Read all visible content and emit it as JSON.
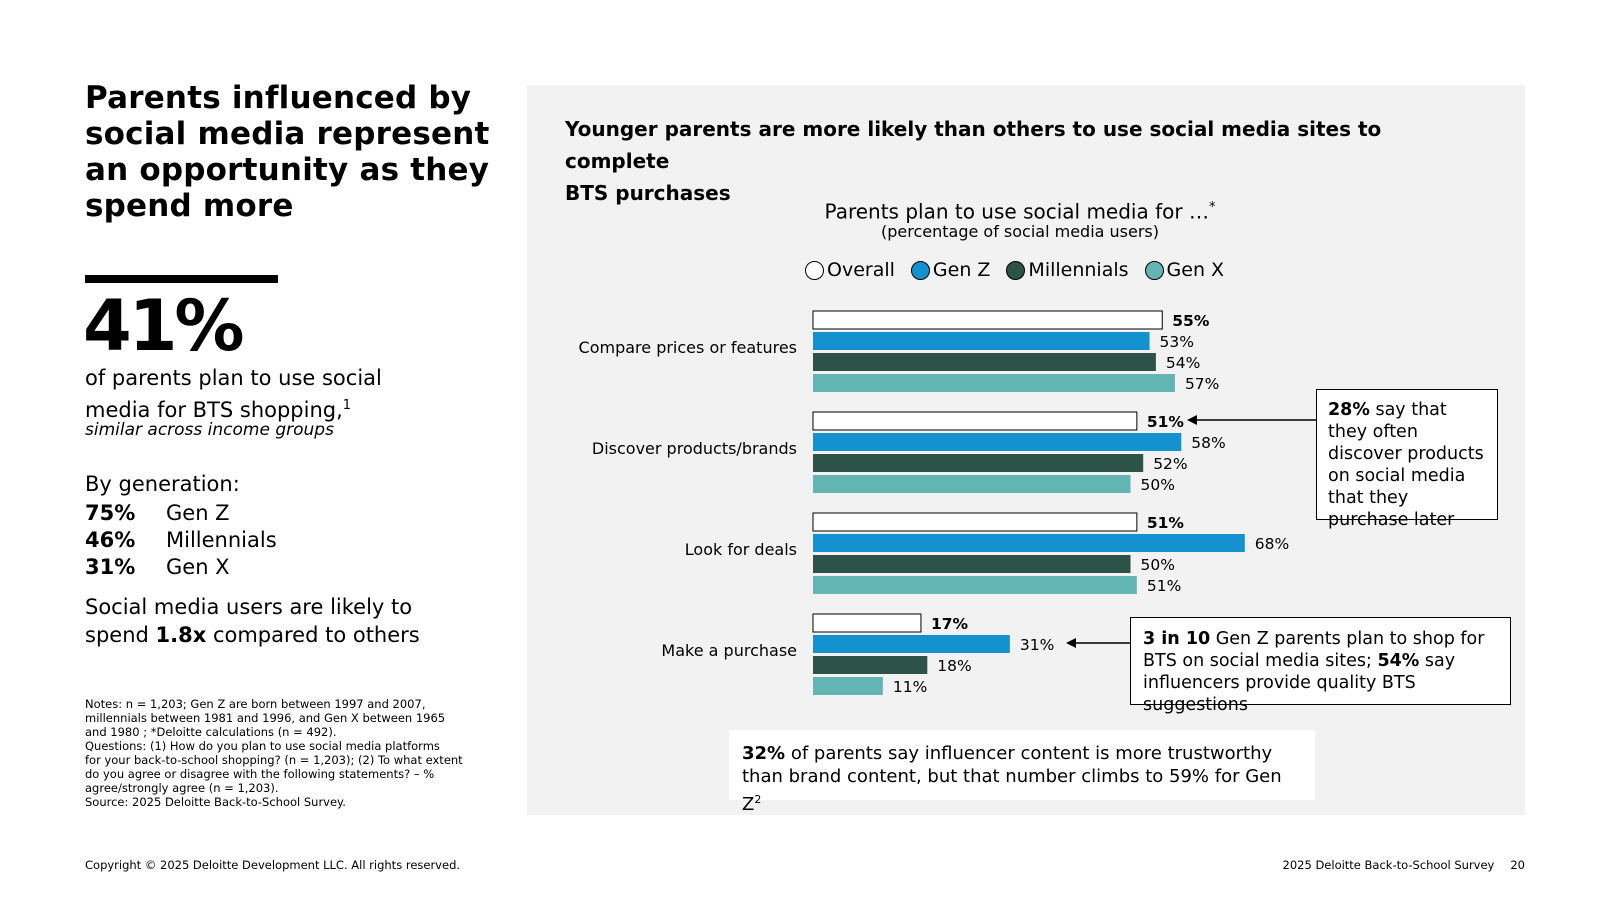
{
  "headline": {
    "line1": "Parents influenced by",
    "line2": "social media represent",
    "line3": "an opportunity as they",
    "line4": "spend more"
  },
  "stat": {
    "value": "41%",
    "desc_line1": "of parents plan to use social",
    "desc_line2": "media for BTS shopping,",
    "desc_sup": "1",
    "note": "similar across income groups"
  },
  "generation": {
    "title": "By generation:",
    "rows": [
      {
        "pct": "75%",
        "label": "Gen Z"
      },
      {
        "pct": "46%",
        "label": "Millennials"
      },
      {
        "pct": "31%",
        "label": "Gen X"
      }
    ]
  },
  "spend": {
    "line1": "Social media users are likely to",
    "pre": "spend ",
    "bold": "1.8x",
    "post": " compared to others"
  },
  "notes": {
    "lines": [
      "Notes: n = 1,203; Gen Z are born between 1997 and 2007,",
      "millennials between 1981 and 1996, and Gen X between 1965",
      "and 1980 ; *Deloitte calculations (n = 492).",
      "Questions: (1) How do you plan to use social media platforms",
      "for your back-to-school shopping? (n = 1,203); (2) To what extent",
      "do you agree or disagree with the following statements? – %",
      "agree/strongly agree (n = 1,203).",
      "Source: 2025 Deloitte Back-to-School Survey."
    ]
  },
  "panel": {
    "title_line1": "Younger parents are more likely than others to use social media sites to complete",
    "title_line2": "BTS purchases"
  },
  "callouts": {
    "c1_bold": "28%",
    "c1_text": " say that they often discover products on social media that they purchase later",
    "c2_bold1": "3 in 10",
    "c2_text1": " Gen Z parents plan to shop for BTS on social media sites; ",
    "c2_bold2": "54%",
    "c2_text2": " say influencers provide quality BTS suggestions",
    "c3_bold": "32%",
    "c3_text": " of parents say influencer content is more trustworthy than brand content, but that number climbs to 59% for Gen Z",
    "c3_sup": "2"
  },
  "footer": {
    "copyright": "Copyright © 2025 Deloitte Development LLC. All rights reserved.",
    "survey": "2025 Deloitte Back-to-School Survey",
    "page": "20"
  },
  "chart_data": {
    "type": "bar",
    "orientation": "horizontal",
    "title": "Parents plan to use social media for …",
    "title_sup": "*",
    "subtitle": "(percentage of social media users)",
    "categories": [
      "Compare prices or features",
      "Discover products/brands",
      "Look for deals",
      "Make a purchase"
    ],
    "series": [
      {
        "name": "Overall",
        "color": "#ffffff",
        "values": [
          55,
          51,
          51,
          17
        ]
      },
      {
        "name": "Gen Z",
        "color": "#1492d0",
        "values": [
          53,
          58,
          68,
          31
        ]
      },
      {
        "name": "Millennials",
        "color": "#2d5247",
        "values": [
          54,
          52,
          50,
          18
        ]
      },
      {
        "name": "Gen X",
        "color": "#62b5b3",
        "values": [
          57,
          50,
          51,
          11
        ]
      }
    ],
    "value_suffix": "%",
    "legend_position": "top",
    "grid": false
  }
}
